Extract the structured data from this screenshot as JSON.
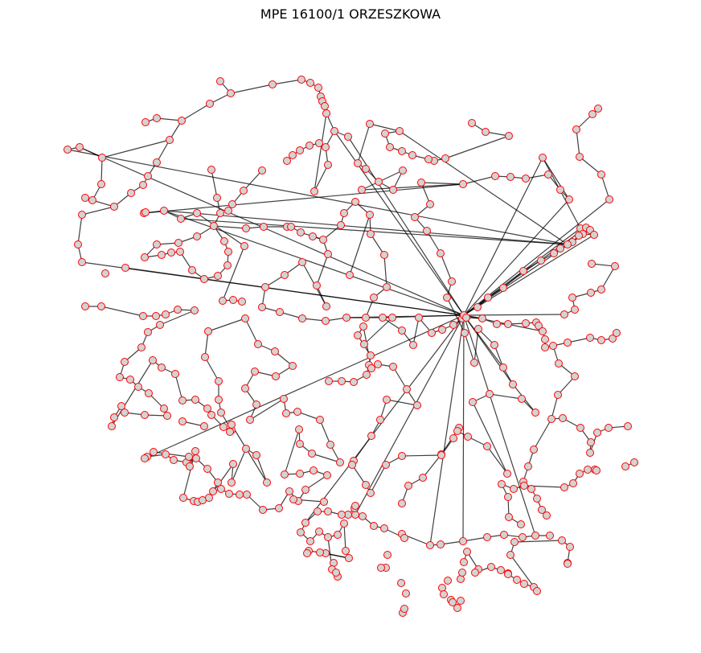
{
  "title": "MPE 16100/1 ORZESZKOWA",
  "style": {
    "node_fill": "#d3d3d3",
    "node_stroke": "#ff0000",
    "edge_color": "#000000"
  }
}
